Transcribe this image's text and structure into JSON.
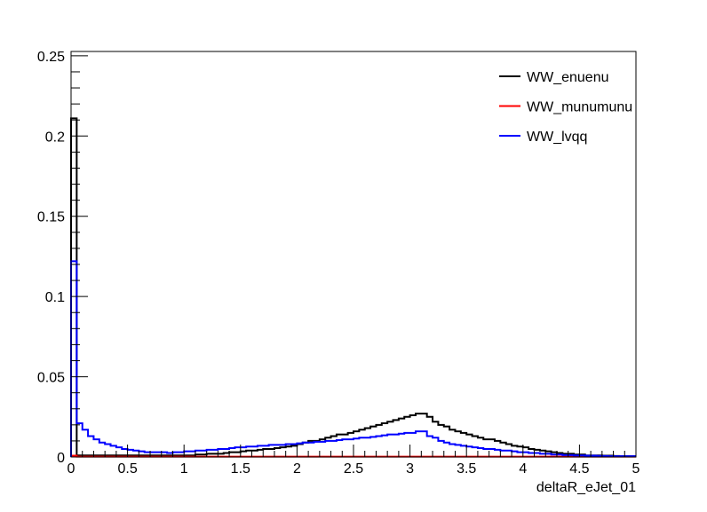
{
  "chart_data": {
    "type": "line",
    "style": "step-histogram",
    "title": "",
    "xlabel": "deltaR_eJet_01",
    "ylabel": "",
    "xlim": [
      0,
      5
    ],
    "ylim": [
      0,
      0.2527
    ],
    "bin_width": 0.05,
    "x_ticks": [
      "0",
      "0.5",
      "1",
      "1.5",
      "2",
      "2.5",
      "3",
      "3.5",
      "4",
      "4.5",
      "5"
    ],
    "x_tick_values": [
      0,
      0.5,
      1,
      1.5,
      2,
      2.5,
      3,
      3.5,
      4,
      4.5,
      5
    ],
    "y_ticks": [
      "0",
      "0.05",
      "0.1",
      "0.15",
      "0.2",
      "0.25"
    ],
    "y_tick_values": [
      0,
      0.05,
      0.1,
      0.15,
      0.2,
      0.25
    ],
    "grid": false,
    "legend_placement": "top-right",
    "series": [
      {
        "name": "WW_enuenu",
        "color": "#000000",
        "values": [
          0.211,
          0.001,
          0.001,
          0.001,
          0.001,
          0.001,
          0.001,
          0.001,
          0.001,
          0.001,
          0.001,
          0.001,
          0.001,
          0.001,
          0.001,
          0.001,
          0.001,
          0.001,
          0.001,
          0.001,
          0.001,
          0.001,
          0.0015,
          0.0015,
          0.002,
          0.002,
          0.002,
          0.0025,
          0.003,
          0.003,
          0.0035,
          0.004,
          0.004,
          0.0045,
          0.005,
          0.005,
          0.0055,
          0.006,
          0.0065,
          0.007,
          0.008,
          0.009,
          0.01,
          0.01,
          0.011,
          0.012,
          0.013,
          0.014,
          0.014,
          0.015,
          0.016,
          0.017,
          0.018,
          0.019,
          0.02,
          0.021,
          0.022,
          0.023,
          0.024,
          0.025,
          0.026,
          0.027,
          0.027,
          0.025,
          0.022,
          0.02,
          0.019,
          0.017,
          0.016,
          0.015,
          0.014,
          0.013,
          0.012,
          0.011,
          0.011,
          0.01,
          0.009,
          0.008,
          0.007,
          0.0065,
          0.006,
          0.005,
          0.0045,
          0.004,
          0.0035,
          0.003,
          0.0025,
          0.002,
          0.002,
          0.0015,
          0.0015,
          0.001,
          0.001,
          0.001,
          0.0008,
          0.0008,
          0.0006,
          0.0005,
          0.0005,
          0.0005
        ]
      },
      {
        "name": "WW_munumunu",
        "color": "#ff0000",
        "values": [
          0.0008,
          0.0002,
          0.0002,
          0.0002,
          0.0002,
          0.0002,
          0.0002,
          0.0002,
          0.0002,
          0.0002,
          0.0002,
          0.0002,
          0.0002,
          0.0002,
          0.0002,
          0.0002,
          0.0002,
          0.0002,
          0.0002,
          0.0002,
          0.0002,
          0.0002,
          0.0002,
          0.0002,
          0.0002,
          0.0002,
          0.0002,
          0.0002,
          0.0002,
          0.0002,
          0.0002,
          0.0002,
          0.0002,
          0.0002,
          0.0002,
          0.0002,
          0.0002,
          0.0002,
          0.0002,
          0.0002,
          0.0002,
          0.0002,
          0.0002,
          0.0002,
          0.0002,
          0.0002,
          0.0002,
          0.0002,
          0.0002,
          0.0002,
          0.0002,
          0.0002,
          0.0002,
          0.0002,
          0.0002,
          0.0002,
          0.0002,
          0.0002,
          0.0002,
          0.0002,
          0.0002,
          0.0002,
          0.0002,
          0.0002,
          0.0002,
          0.0002,
          0.0002,
          0.0002,
          0.0002,
          0.0002,
          0.0002,
          0.0002,
          0.0002,
          0.0002,
          0.0002,
          0.0002,
          0.0002,
          0.0002,
          0.0002,
          0.0002,
          0.0002,
          0.0002,
          0.0002,
          0.0002,
          0.0002,
          0.0002,
          0.0002,
          0.0002,
          0.0002,
          0.0002,
          0.0002,
          0.0002,
          0.0002,
          0.0002,
          0.0002,
          0.0002,
          0.0002,
          0.0002,
          0.0002,
          0.0002
        ]
      },
      {
        "name": "WW_lvqq",
        "color": "#0000ff",
        "values": [
          0.122,
          0.021,
          0.017,
          0.013,
          0.011,
          0.009,
          0.008,
          0.007,
          0.006,
          0.005,
          0.0045,
          0.004,
          0.0035,
          0.003,
          0.003,
          0.003,
          0.003,
          0.0025,
          0.003,
          0.003,
          0.0035,
          0.0035,
          0.004,
          0.004,
          0.0045,
          0.0045,
          0.005,
          0.005,
          0.0055,
          0.006,
          0.006,
          0.0065,
          0.0065,
          0.007,
          0.007,
          0.0075,
          0.0075,
          0.0075,
          0.008,
          0.008,
          0.0085,
          0.009,
          0.009,
          0.0095,
          0.0095,
          0.01,
          0.01,
          0.0105,
          0.011,
          0.011,
          0.0115,
          0.012,
          0.012,
          0.0125,
          0.013,
          0.0135,
          0.014,
          0.014,
          0.0145,
          0.015,
          0.015,
          0.016,
          0.016,
          0.013,
          0.012,
          0.01,
          0.009,
          0.008,
          0.0075,
          0.007,
          0.0065,
          0.006,
          0.0055,
          0.005,
          0.005,
          0.0045,
          0.004,
          0.004,
          0.0035,
          0.003,
          0.003,
          0.0025,
          0.0025,
          0.002,
          0.002,
          0.0015,
          0.0015,
          0.0012,
          0.0012,
          0.001,
          0.001,
          0.0008,
          0.0008,
          0.0007,
          0.0006,
          0.0005,
          0.0005,
          0.0005,
          0.0005,
          0.0005
        ]
      }
    ]
  }
}
